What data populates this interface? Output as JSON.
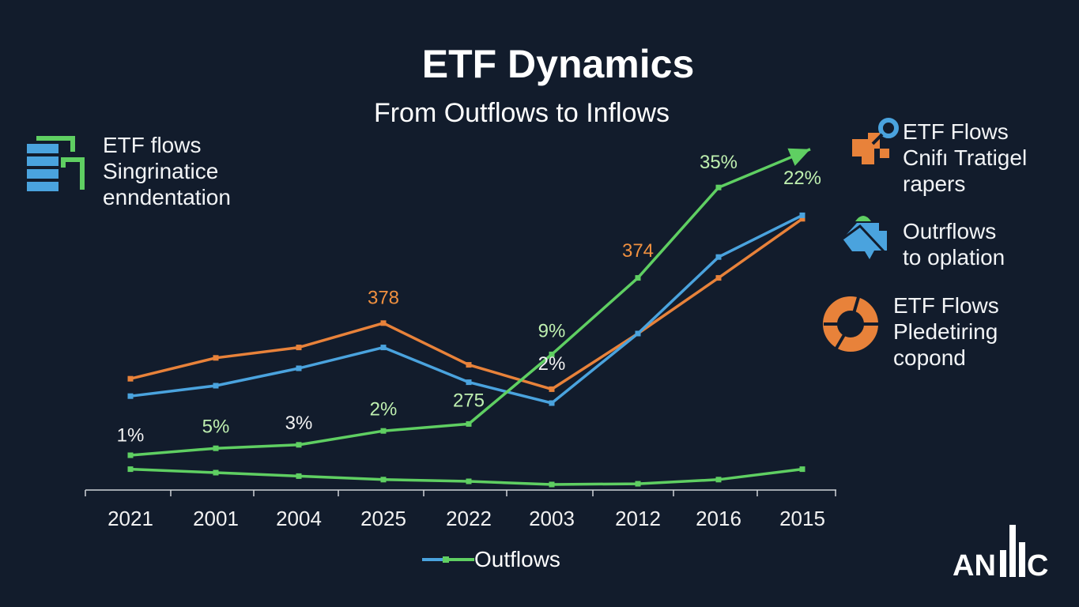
{
  "title": "ETF Dynamics",
  "subtitle": "From Outflows to Inflows",
  "left_note": {
    "icon": "stacked-bars-icon",
    "lines": [
      "ETF flows",
      "Singrinatice",
      "enndentation"
    ]
  },
  "right_notes": [
    {
      "icon": "puzzle-magnifier-icon",
      "lines": [
        "ETF Flows",
        "Cnifı Tratigel",
        "rapers"
      ]
    },
    {
      "icon": "map-pin-icon",
      "lines": [
        "Outrflows",
        "to oplation"
      ]
    },
    {
      "icon": "donut-icon",
      "lines": [
        "ETF Flows",
        "Pledetiring",
        "copond"
      ]
    }
  ],
  "legend": {
    "label": "Outflows"
  },
  "logo": "ANllC",
  "chart_data": {
    "type": "line",
    "title": "ETF Dynamics",
    "subtitle": "From Outflows to Inflows",
    "xlabel": "",
    "ylabel": "",
    "categories": [
      "2021",
      "2001",
      "2004",
      "2025",
      "2022",
      "2003",
      "2012",
      "2016",
      "2015"
    ],
    "ylim": [
      0,
      100
    ],
    "y_axis_shown": false,
    "grid": false,
    "legend_position": "bottom",
    "series": [
      {
        "color": "#e8823a",
        "values": [
          32,
          38,
          41,
          48,
          36,
          29,
          45,
          61,
          78
        ]
      },
      {
        "color": "#4aa3de",
        "values": [
          27,
          30,
          35,
          41,
          31,
          25,
          45,
          67,
          79
        ]
      },
      {
        "color": "#5fcf62",
        "arrow": true,
        "values": [
          10,
          12,
          13,
          17,
          19,
          39,
          61,
          87,
          98
        ]
      },
      {
        "name": "Outflows",
        "color": "#5fcf62",
        "values": [
          6,
          5,
          4,
          3,
          2.5,
          1.6,
          1.8,
          3,
          6
        ]
      }
    ],
    "annotations": [
      {
        "text": "1%",
        "x": 0,
        "y": 14,
        "color": "#f2f2f2"
      },
      {
        "text": "5%",
        "x": 1,
        "y": 16.5,
        "color": "#bff0b0"
      },
      {
        "text": "3%",
        "x": 2,
        "y": 17.5,
        "color": "#f2f2f2"
      },
      {
        "text": "2%",
        "x": 3,
        "y": 21.5,
        "color": "#bff0b0"
      },
      {
        "text": "275",
        "x": 4,
        "y": 24,
        "color": "#bff0b0"
      },
      {
        "text": "378",
        "x": 3,
        "y": 53.5,
        "color": "#f0903f"
      },
      {
        "text": "9%",
        "x": 5,
        "y": 44,
        "color": "#bff0b0"
      },
      {
        "text": "2%",
        "x": 5,
        "y": 34.5,
        "color": "#f2f2f2"
      },
      {
        "text": "374",
        "x": 6,
        "y": 67,
        "color": "#f0903f"
      },
      {
        "text": "35%",
        "x": 7,
        "y": 92.5,
        "color": "#bff0b0"
      },
      {
        "text": "22%",
        "x": 8,
        "y": 88,
        "color": "#bff0b0"
      }
    ]
  }
}
